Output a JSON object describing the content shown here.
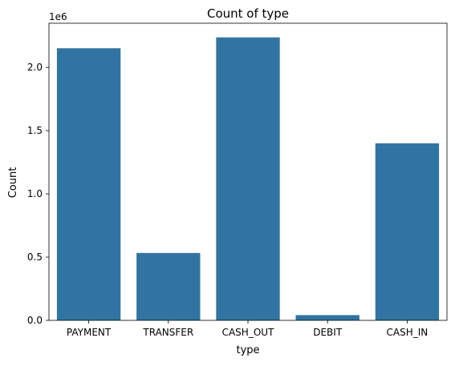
{
  "chart_data": {
    "type": "bar",
    "title": "Count of type",
    "xlabel": "type",
    "ylabel": "Count",
    "y_offset_label": "1e6",
    "categories": [
      "PAYMENT",
      "TRANSFER",
      "CASH_OUT",
      "DEBIT",
      "CASH_IN"
    ],
    "values": [
      2151495,
      532909,
      2237500,
      41432,
      1399284
    ],
    "ylim": [
      0,
      2349375
    ],
    "yticks": [
      0.0,
      0.5,
      1.0,
      1.5,
      2.0
    ],
    "ytick_labels": [
      "0.0",
      "0.5",
      "1.0",
      "1.5",
      "2.0"
    ],
    "grid": false,
    "bar_color": "#3274a1"
  }
}
